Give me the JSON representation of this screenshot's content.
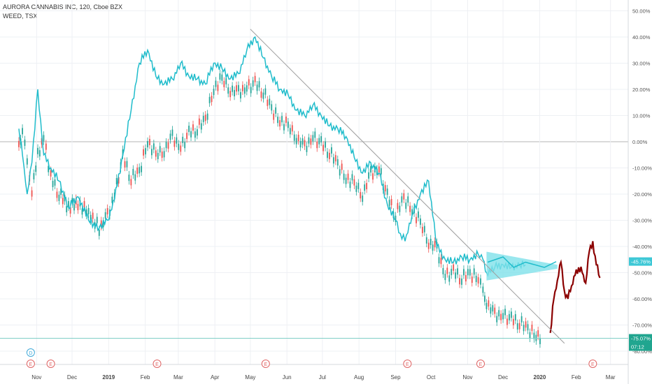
{
  "header": {
    "title": "AURORA CANNABIS INC, 120, Cboe BZX",
    "subtitle": "WEED, TSX"
  },
  "colors": {
    "compare_line": "#1fbccb",
    "candle_up": "#26a69a",
    "candle_down": "#ef5350",
    "forecast": "#8b0000",
    "trendline": "#9e9e9e",
    "triangle": "#7fe1ea",
    "hline": "#7fcfc6",
    "badge_cyan": "#3ec8d6",
    "badge_green": "#20a58f",
    "event_red": "#e06666",
    "event_blue": "#3fa9d9"
  },
  "price_badges": {
    "compare_value": "-45.76%",
    "main_value": "-75.07%",
    "countdown": "07:12"
  },
  "events": {
    "dividend_label": "D",
    "earnings_label": "E"
  },
  "chart_data": {
    "type": "line",
    "y_unit": "%",
    "ylim": [
      -80,
      50
    ],
    "y_ticks": [
      "50.00%",
      "40.00%",
      "30.00%",
      "20.00%",
      "10.00%",
      "0.00%",
      "-10.00%",
      "-20.00%",
      "-30.00%",
      "-40.00%",
      "-50.00%",
      "-60.00%",
      "-70.00%",
      "-80.00%"
    ],
    "y_tick_values": [
      50,
      40,
      30,
      20,
      10,
      0,
      -10,
      -20,
      -30,
      -40,
      -50,
      -60,
      -70,
      -80
    ],
    "x_ticks": [
      "Nov",
      "Dec",
      "2019",
      "Feb",
      "Mar",
      "Apr",
      "May",
      "Jun",
      "Jul",
      "Aug",
      "Sep",
      "Oct",
      "Nov",
      "Dec",
      "2020",
      "Feb",
      "Mar"
    ],
    "x_tick_dates": [
      "2018-11-01",
      "2018-12-01",
      "2019-01-01",
      "2019-02-01",
      "2019-03-01",
      "2019-04-01",
      "2019-05-01",
      "2019-06-01",
      "2019-07-01",
      "2019-08-01",
      "2019-09-01",
      "2019-10-01",
      "2019-11-01",
      "2019-12-01",
      "2020-01-01",
      "2020-02-01",
      "2020-03-01"
    ],
    "grid": true,
    "series": [
      {
        "name": "AURORA CANNABIS INC, 120, Cboe BZX",
        "style": "candles",
        "x": [
          "2018-10-17",
          "2018-10-20",
          "2018-10-24",
          "2018-10-28",
          "2018-11-02",
          "2018-11-07",
          "2018-11-13",
          "2018-11-20",
          "2018-11-28",
          "2018-12-06",
          "2018-12-15",
          "2018-12-24",
          "2018-12-31",
          "2019-01-06",
          "2019-01-13",
          "2019-01-20",
          "2019-01-27",
          "2019-02-03",
          "2019-02-10",
          "2019-02-17",
          "2019-02-24",
          "2019-03-03",
          "2019-03-10",
          "2019-03-17",
          "2019-03-24",
          "2019-03-31",
          "2019-04-07",
          "2019-04-14",
          "2019-04-21",
          "2019-04-28",
          "2019-05-05",
          "2019-05-12",
          "2019-05-19",
          "2019-05-26",
          "2019-06-02",
          "2019-06-09",
          "2019-06-16",
          "2019-06-23",
          "2019-06-30",
          "2019-07-07",
          "2019-07-14",
          "2019-07-21",
          "2019-07-28",
          "2019-08-04",
          "2019-08-11",
          "2019-08-18",
          "2019-08-25",
          "2019-09-01",
          "2019-09-08",
          "2019-09-15",
          "2019-09-22",
          "2019-09-29",
          "2019-10-06",
          "2019-10-13",
          "2019-10-20",
          "2019-10-27",
          "2019-11-03",
          "2019-11-10",
          "2019-11-14",
          "2019-11-17",
          "2019-11-24",
          "2019-12-01",
          "2019-12-08",
          "2019-12-15",
          "2019-12-22",
          "2019-12-29",
          "2020-01-03"
        ],
        "values": [
          -2,
          5,
          -8,
          -18,
          -5,
          2,
          -14,
          -20,
          -25,
          -24,
          -27,
          -33,
          -28,
          -20,
          -6,
          -14,
          -12,
          0,
          -5,
          -3,
          2,
          -2,
          3,
          5,
          8,
          20,
          24,
          20,
          19,
          21,
          22,
          19,
          12,
          8,
          6,
          2,
          -2,
          2,
          -1,
          -4,
          -9,
          -14,
          -16,
          -20,
          -12,
          -10,
          -21,
          -28,
          -22,
          -26,
          -31,
          -38,
          -41,
          -51,
          -50,
          -52,
          -51,
          -52,
          -57,
          -61,
          -66,
          -66,
          -68,
          -69,
          -72,
          -74,
          -75
        ]
      },
      {
        "name": "WEED, TSX",
        "x": [
          "2018-10-17",
          "2018-10-20",
          "2018-10-24",
          "2018-10-28",
          "2018-11-02",
          "2018-11-07",
          "2018-11-13",
          "2018-11-20",
          "2018-11-28",
          "2018-12-06",
          "2018-12-15",
          "2018-12-24",
          "2018-12-31",
          "2019-01-06",
          "2019-01-13",
          "2019-01-20",
          "2019-01-27",
          "2019-02-03",
          "2019-02-10",
          "2019-02-17",
          "2019-02-24",
          "2019-03-03",
          "2019-03-10",
          "2019-03-17",
          "2019-03-24",
          "2019-03-31",
          "2019-04-07",
          "2019-04-14",
          "2019-04-21",
          "2019-04-28",
          "2019-05-05",
          "2019-05-12",
          "2019-05-19",
          "2019-05-26",
          "2019-06-02",
          "2019-06-09",
          "2019-06-16",
          "2019-06-23",
          "2019-06-30",
          "2019-07-07",
          "2019-07-14",
          "2019-07-21",
          "2019-07-28",
          "2019-08-04",
          "2019-08-11",
          "2019-08-18",
          "2019-08-25",
          "2019-09-01",
          "2019-09-05",
          "2019-09-09",
          "2019-09-15",
          "2019-09-22",
          "2019-09-29",
          "2019-10-06",
          "2019-10-13",
          "2019-10-20",
          "2019-10-27",
          "2019-11-03",
          "2019-11-10",
          "2019-11-14",
          "2019-11-17",
          "2019-11-24",
          "2019-12-01",
          "2019-12-08",
          "2019-12-15",
          "2019-12-20"
        ],
        "values": [
          5,
          -5,
          -20,
          -8,
          20,
          -5,
          -10,
          -15,
          -25,
          -21,
          -30,
          -33,
          -30,
          -22,
          -5,
          12,
          30,
          35,
          25,
          22,
          24,
          30,
          25,
          24,
          22,
          30,
          28,
          24,
          26,
          35,
          40,
          32,
          25,
          20,
          18,
          12,
          10,
          14,
          10,
          6,
          5,
          2,
          -6,
          -12,
          -8,
          -12,
          -24,
          -30,
          -35,
          -38,
          -28,
          -20,
          -15,
          -40,
          -45,
          -46,
          -44,
          -45,
          -43,
          -45,
          -50,
          -48,
          -47,
          -48,
          -47,
          -47
        ]
      },
      {
        "name": "",
        "style": "forecast",
        "x": [
          "2020-01-10",
          "2020-01-13",
          "2020-01-16",
          "2020-01-19",
          "2020-01-22",
          "2020-01-25",
          "2020-01-28",
          "2020-01-31",
          "2020-02-03",
          "2020-02-06",
          "2020-02-09",
          "2020-02-12",
          "2020-02-15",
          "2020-02-18",
          "2020-02-21"
        ],
        "values": [
          -73,
          -60,
          -53,
          -46,
          -57,
          -60,
          -55,
          -51,
          -48,
          -50,
          -54,
          -42,
          -38,
          -47,
          -52
        ]
      }
    ],
    "annotations": {
      "trendline": {
        "x": [
          "2019-05-01",
          "2020-01-22"
        ],
        "y": [
          43,
          -77
        ]
      },
      "horizontal_line": -75.07,
      "triangle": {
        "x": [
          "2019-11-17",
          "2020-01-16",
          "2020-01-16"
        ],
        "y": [
          -42,
          -47,
          -48.5
        ],
        "apex": {
          "x": "2019-11-17",
          "y": -53
        }
      },
      "dividend_dates": [
        "2018-10-27"
      ],
      "earnings_dates": [
        "2018-10-27",
        "2018-11-13",
        "2019-02-11",
        "2019-05-14",
        "2019-09-11",
        "2019-11-12",
        "2020-02-15"
      ]
    }
  }
}
